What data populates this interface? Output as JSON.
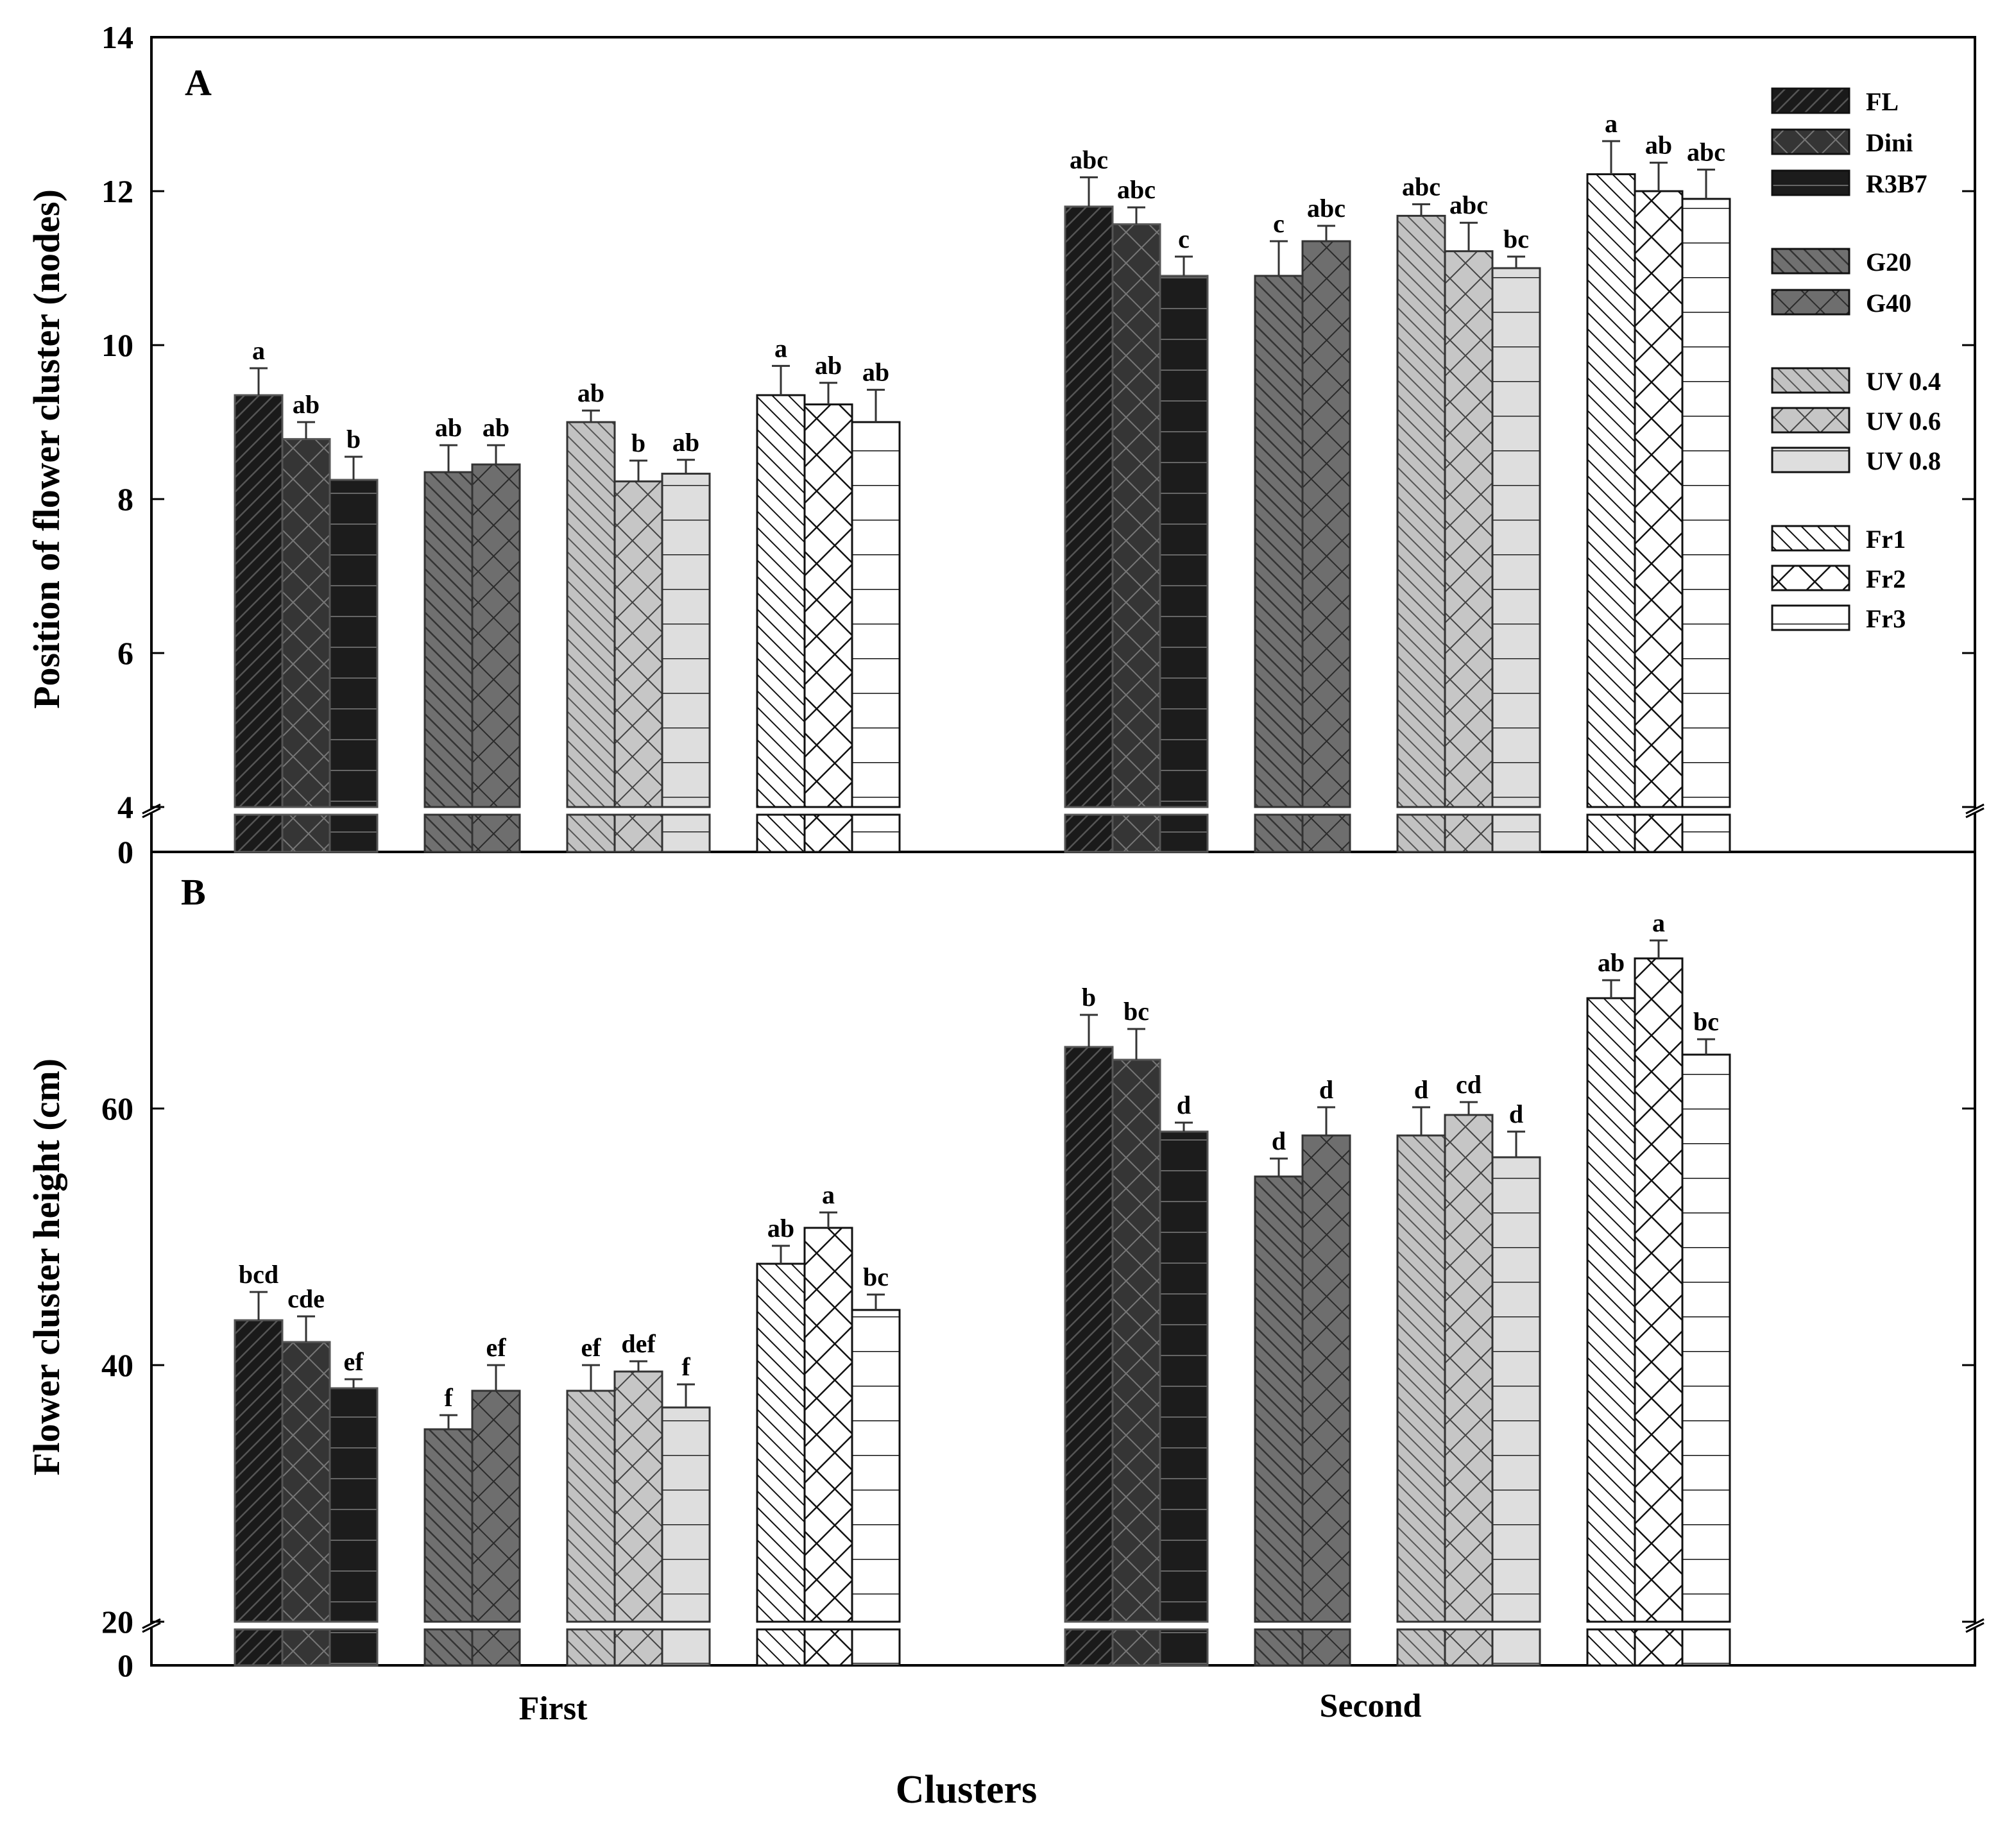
{
  "chart_data": [
    {
      "type": "bar",
      "panel": "A",
      "ylabel": "Position of flower cluster (nodes)",
      "xlabel": "Clusters",
      "y_ticks": [
        "0",
        "4",
        "6",
        "8",
        "10",
        "12",
        "14"
      ],
      "ylim_broken": [
        0,
        4
      ],
      "ylim": [
        4,
        14
      ],
      "categories": [
        "First",
        "Second"
      ],
      "series": [
        {
          "name": "FL",
          "pattern": "dense-diag",
          "fill": "#1a1a1a",
          "values": [
            9.35,
            11.8
          ],
          "errors": [
            0.35,
            0.38
          ],
          "letters": [
            "a",
            "abc"
          ]
        },
        {
          "name": "Dini",
          "pattern": "cross-dark",
          "fill": "#3a3a3a",
          "values": [
            8.78,
            11.57
          ],
          "errors": [
            0.22,
            0.22
          ],
          "letters": [
            "ab",
            "abc"
          ]
        },
        {
          "name": "R3B7",
          "pattern": "hlines-dark",
          "fill": "#1c1c1c",
          "values": [
            8.25,
            10.9
          ],
          "errors": [
            0.3,
            0.25
          ],
          "letters": [
            "b",
            "c"
          ]
        },
        {
          "name": "G20",
          "pattern": "diag",
          "fill": "#707070",
          "values": [
            8.35,
            10.9
          ],
          "errors": [
            0.35,
            0.45
          ],
          "letters": [
            "ab",
            "c"
          ]
        },
        {
          "name": "G40",
          "pattern": "cross",
          "fill": "#707070",
          "values": [
            8.45,
            11.35
          ],
          "errors": [
            0.25,
            0.2
          ],
          "letters": [
            "ab",
            "abc"
          ]
        },
        {
          "name": "UV 0.4",
          "pattern": "diag",
          "fill": "#b4b4b4",
          "values": [
            9.0,
            11.68
          ],
          "errors": [
            0.15,
            0.15
          ],
          "letters": [
            "ab",
            "abc"
          ]
        },
        {
          "name": "UV 0.6",
          "pattern": "cross",
          "fill": "#b4b4b4",
          "values": [
            8.23,
            11.22
          ],
          "errors": [
            0.27,
            0.37
          ],
          "letters": [
            "b",
            "abc"
          ]
        },
        {
          "name": "UV 0.8",
          "pattern": "hlines",
          "fill": "#bebebe",
          "values": [
            8.33,
            11.0
          ],
          "errors": [
            0.18,
            0.15
          ],
          "letters": [
            "ab",
            "bc"
          ]
        },
        {
          "name": "Fr1",
          "pattern": "diag",
          "fill": "#ffffff",
          "values": [
            9.35,
            12.22
          ],
          "errors": [
            0.38,
            0.43
          ],
          "letters": [
            "a",
            "a"
          ]
        },
        {
          "name": "Fr2",
          "pattern": "cross-light",
          "fill": "#ffffff",
          "values": [
            9.23,
            12.0
          ],
          "errors": [
            0.28,
            0.37
          ],
          "letters": [
            "ab",
            "ab"
          ]
        },
        {
          "name": "Fr3",
          "pattern": "hlines",
          "fill": "#ffffff",
          "values": [
            9.0,
            11.9
          ],
          "errors": [
            0.42,
            0.38
          ],
          "letters": [
            "ab",
            "abc"
          ]
        }
      ],
      "legend": {
        "placement": "top-right",
        "items": [
          "FL",
          "Dini",
          "R3B7",
          "G20",
          "G40",
          "UV 0.4",
          "UV 0.6",
          "UV 0.8",
          "Fr1",
          "Fr2",
          "Fr3"
        ]
      }
    },
    {
      "type": "bar",
      "panel": "B",
      "ylabel": "Flower cluster height (cm)",
      "xlabel": "Clusters",
      "y_ticks": [
        "0",
        "20",
        "40",
        "60"
      ],
      "ylim_broken": [
        0,
        20
      ],
      "ylim": [
        20,
        80
      ],
      "categories": [
        "First",
        "Second"
      ],
      "series": [
        {
          "name": "FL",
          "values": [
            43.5,
            64.8
          ],
          "errors": [
            2.2,
            2.5
          ],
          "letters": [
            "bcd",
            "b"
          ]
        },
        {
          "name": "Dini",
          "values": [
            41.8,
            63.8
          ],
          "errors": [
            2.0,
            2.4
          ],
          "letters": [
            "cde",
            "bc"
          ]
        },
        {
          "name": "R3B7",
          "values": [
            38.2,
            58.2
          ],
          "errors": [
            0.7,
            0.7
          ],
          "letters": [
            "ef",
            "d"
          ]
        },
        {
          "name": "G20",
          "values": [
            35.0,
            54.7
          ],
          "errors": [
            1.1,
            1.4
          ],
          "letters": [
            "f",
            "d"
          ]
        },
        {
          "name": "G40",
          "values": [
            38.0,
            57.9
          ],
          "errors": [
            2.0,
            2.2
          ],
          "letters": [
            "ef",
            "d"
          ]
        },
        {
          "name": "UV 0.4",
          "values": [
            38.0,
            57.9
          ],
          "errors": [
            2.0,
            2.2
          ],
          "letters": [
            "ef",
            "d"
          ]
        },
        {
          "name": "UV 0.6",
          "values": [
            39.5,
            59.5
          ],
          "errors": [
            0.8,
            1.0
          ],
          "letters": [
            "def",
            "cd"
          ]
        },
        {
          "name": "UV 0.8",
          "values": [
            36.7,
            56.2
          ],
          "errors": [
            1.8,
            2.0
          ],
          "letters": [
            "f",
            "d"
          ]
        },
        {
          "name": "Fr1",
          "values": [
            47.9,
            68.6
          ],
          "errors": [
            1.4,
            1.4
          ],
          "letters": [
            "ab",
            "ab"
          ]
        },
        {
          "name": "Fr2",
          "values": [
            50.7,
            71.7
          ],
          "errors": [
            1.2,
            1.4
          ],
          "letters": [
            "a",
            "a"
          ]
        },
        {
          "name": "Fr3",
          "values": [
            44.3,
            64.2
          ],
          "errors": [
            1.2,
            1.2
          ],
          "letters": [
            "bc",
            "bc"
          ]
        }
      ]
    }
  ],
  "panel_letters": [
    "A",
    "B"
  ],
  "group_labels": [
    "First",
    "Second"
  ],
  "x_title": "Clusters"
}
